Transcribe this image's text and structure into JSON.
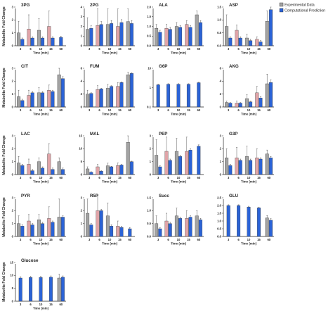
{
  "legend": {
    "experimental": "Experimental Data",
    "computational": "Computational Prediction"
  },
  "colors": {
    "experimental_3": "#a3a3a3",
    "experimental_6": "#e0a4a8",
    "experimental_10": "#a3a3a3",
    "experimental_15": "#e0a4a8",
    "experimental_60": "#a3a3a3",
    "computational": "#2b63d6",
    "axis": "#222222"
  },
  "y_axis_label": "Metabolite Fold Change",
  "x_axis_label": "Time (min)",
  "chart_data": [
    {
      "type": "bar",
      "title": "3PG",
      "categories": [
        "3",
        "6",
        "10",
        "15",
        "60"
      ],
      "yticks": [
        "0",
        "1",
        "2",
        "3"
      ],
      "ylim": [
        0,
        3
      ],
      "series": [
        {
          "name": "Experimental Data",
          "values": [
            1.0,
            1.3,
            1.2,
            1.5,
            null
          ],
          "errors": [
            0.9,
            1.1,
            0.9,
            1.2,
            null
          ]
        },
        {
          "name": "Computational Prediction",
          "values": [
            0.5,
            0.6,
            0.6,
            0.6,
            0.65
          ],
          "errors": [
            0.1,
            0.1,
            0.1,
            0.1,
            0.1
          ]
        }
      ]
    },
    {
      "type": "bar",
      "title": "2PG",
      "categories": [
        "3",
        "6",
        "10",
        "15",
        "60"
      ],
      "yticks": [
        "0",
        "1",
        "2",
        "3",
        "4"
      ],
      "ylim": [
        0,
        4
      ],
      "series": [
        {
          "name": "Experimental Data",
          "values": [
            1.7,
            2.1,
            2.2,
            2.0,
            2.5
          ],
          "errors": [
            1.2,
            1.7,
            1.6,
            1.8,
            1.3
          ]
        },
        {
          "name": "Computational Prediction",
          "values": [
            1.8,
            2.2,
            2.3,
            2.4,
            2.3
          ],
          "errors": [
            0.3,
            0.3,
            0.3,
            0.3,
            0.3
          ]
        }
      ]
    },
    {
      "type": "bar",
      "title": "ALA",
      "categories": [
        "3",
        "6",
        "10",
        "15",
        "60"
      ],
      "yticks": [
        "0.0",
        "0.5",
        "1.0",
        "1.5",
        "2.0"
      ],
      "ylim": [
        0,
        2
      ],
      "series": [
        {
          "name": "Experimental Data",
          "values": [
            0.9,
            0.9,
            1.0,
            1.1,
            1.6
          ],
          "errors": [
            0.2,
            0.2,
            0.2,
            0.2,
            0.2
          ]
        },
        {
          "name": "Computational Prediction",
          "values": [
            0.7,
            0.85,
            0.95,
            0.95,
            1.2
          ],
          "errors": [
            0.1,
            0.1,
            0.1,
            0.1,
            0.1
          ]
        }
      ]
    },
    {
      "type": "bar",
      "title": "ASP",
      "categories": [
        "3",
        "6",
        "10",
        "15",
        "60"
      ],
      "yticks": [
        "0.0",
        "0.5",
        "1.0",
        "1.5"
      ],
      "ylim": [
        0,
        1.5
      ],
      "series": [
        {
          "name": "Experimental Data",
          "values": [
            0.75,
            0.6,
            0.3,
            0.25,
            0.95
          ],
          "errors": [
            0.45,
            0.2,
            0.15,
            0.1,
            0.4
          ]
        },
        {
          "name": "Computational Prediction",
          "values": [
            0.3,
            0.3,
            0.2,
            0.15,
            1.4
          ],
          "errors": [
            0.05,
            0.05,
            0.05,
            0.05,
            0.1
          ]
        }
      ]
    },
    {
      "type": "bar",
      "title": "CIT",
      "categories": [
        "3",
        "6",
        "10",
        "15",
        "60"
      ],
      "yticks": [
        "0",
        "1",
        "2",
        "3"
      ],
      "ylim": [
        0,
        3
      ],
      "series": [
        {
          "name": "Experimental Data",
          "values": [
            0.8,
            0.9,
            1.1,
            1.3,
            2.5
          ],
          "errors": [
            0.5,
            0.4,
            0.4,
            0.4,
            0.5
          ]
        },
        {
          "name": "Computational Prediction",
          "values": [
            0.5,
            1.1,
            1.1,
            1.2,
            2.2
          ],
          "errors": [
            0.1,
            0.1,
            0.1,
            0.1,
            0.15
          ]
        }
      ]
    },
    {
      "type": "bar",
      "title": "FUM",
      "categories": [
        "3",
        "6",
        "10",
        "15",
        "60"
      ],
      "yticks": [
        "0",
        "2",
        "4",
        "6"
      ],
      "ylim": [
        0,
        6
      ],
      "series": [
        {
          "name": "Experimental Data",
          "values": [
            2.0,
            2.7,
            2.9,
            3.2,
            5.0
          ],
          "errors": [
            0.6,
            0.6,
            0.6,
            0.6,
            0.4
          ]
        },
        {
          "name": "Computational Prediction",
          "values": [
            2.1,
            2.8,
            3.2,
            3.8,
            5.2
          ],
          "errors": [
            0.1,
            0.1,
            0.1,
            0.1,
            0.1
          ]
        }
      ]
    },
    {
      "type": "bar",
      "title": "G6P",
      "categories": [
        "3",
        "6",
        "10",
        "15",
        "60"
      ],
      "yticks": [
        "0.1",
        "1",
        "10"
      ],
      "ylim": [
        0.1,
        10
      ],
      "scale": "log",
      "series": [
        {
          "name": "Experimental Data",
          "values": [
            null,
            null,
            null,
            null,
            null
          ],
          "errors": [
            null,
            null,
            null,
            null,
            null
          ]
        },
        {
          "name": "Computational Prediction",
          "values": [
            1.4,
            1.5,
            1.5,
            1.5,
            1.8
          ],
          "errors": [
            0.1,
            0.1,
            0.1,
            0.1,
            0.1
          ]
        }
      ]
    },
    {
      "type": "bar",
      "title": "AKG",
      "categories": [
        "3",
        "6",
        "10",
        "15",
        "60"
      ],
      "yticks": [
        "0",
        "2",
        "4",
        "6"
      ],
      "ylim": [
        0,
        6
      ],
      "series": [
        {
          "name": "Experimental Data",
          "values": [
            0.7,
            0.6,
            1.3,
            2.2,
            3.6
          ],
          "errors": [
            0.2,
            0.3,
            0.6,
            1.0,
            1.5
          ]
        },
        {
          "name": "Computational Prediction",
          "values": [
            0.6,
            0.6,
            0.8,
            1.4,
            3.8
          ],
          "errors": [
            0.1,
            0.1,
            0.1,
            0.2,
            0.4
          ]
        }
      ]
    },
    {
      "type": "bar",
      "title": "LAC",
      "categories": [
        "3",
        "6",
        "10",
        "15",
        "60"
      ],
      "yticks": [
        "0",
        "1",
        "2",
        "3"
      ],
      "ylim": [
        0,
        3
      ],
      "series": [
        {
          "name": "Experimental Data",
          "values": [
            0.9,
            0.8,
            1.0,
            1.6,
            1.0
          ],
          "errors": [
            0.5,
            0.4,
            0.3,
            0.8,
            0.3
          ]
        },
        {
          "name": "Computational Prediction",
          "values": [
            0.7,
            0.3,
            0.5,
            0.4,
            0.4
          ],
          "errors": [
            0.1,
            0.1,
            0.1,
            0.1,
            0.1
          ]
        }
      ]
    },
    {
      "type": "bar",
      "title": "MAL",
      "categories": [
        "3",
        "6",
        "10",
        "15",
        "60"
      ],
      "yticks": [
        "0",
        "5",
        "10",
        "15"
      ],
      "ylim": [
        0,
        15
      ],
      "series": [
        {
          "name": "Experimental Data",
          "values": [
            2.2,
            3.0,
            3.4,
            3.5,
            12.5
          ],
          "errors": [
            0.8,
            0.9,
            1.0,
            1.0,
            2.5
          ]
        },
        {
          "name": "Computational Prediction",
          "values": [
            0.9,
            1.3,
            3.0,
            3.7,
            5.0
          ],
          "errors": [
            0.2,
            0.2,
            0.2,
            0.2,
            0.2
          ]
        }
      ]
    },
    {
      "type": "bar",
      "title": "PEP",
      "categories": [
        "3",
        "6",
        "10",
        "15",
        "60"
      ],
      "yticks": [
        "0",
        "1",
        "2",
        "3"
      ],
      "ylim": [
        0,
        3
      ],
      "series": [
        {
          "name": "Experimental Data",
          "values": [
            1.5,
            1.8,
            1.8,
            1.8,
            null
          ],
          "errors": [
            1.2,
            1.1,
            1.0,
            1.1,
            null
          ]
        },
        {
          "name": "Computational Prediction",
          "values": [
            0.6,
            1.1,
            1.4,
            1.9,
            2.2
          ],
          "errors": [
            0.1,
            0.1,
            0.1,
            0.1,
            0.1
          ]
        }
      ]
    },
    {
      "type": "bar",
      "title": "G3P",
      "categories": [
        "3",
        "6",
        "10",
        "15",
        "60"
      ],
      "yticks": [
        "0",
        "1",
        "2",
        "3"
      ],
      "ylim": [
        0,
        3
      ],
      "series": [
        {
          "name": "Experimental Data",
          "values": [
            1.3,
            1.3,
            1.4,
            1.3,
            1.6
          ],
          "errors": [
            0.7,
            0.8,
            0.8,
            0.7,
            0.3
          ]
        },
        {
          "name": "Computational Prediction",
          "values": [
            0.7,
            1.1,
            1.1,
            1.2,
            1.3
          ],
          "errors": [
            0.1,
            0.1,
            0.1,
            0.1,
            0.1
          ]
        }
      ]
    },
    {
      "type": "bar",
      "title": "PYR",
      "categories": [
        "3",
        "6",
        "10",
        "15",
        "60"
      ],
      "yticks": [
        "0",
        "1",
        "2",
        "3"
      ],
      "ylim": [
        0,
        3
      ],
      "series": [
        {
          "name": "Experimental Data",
          "values": [
            1.0,
            1.2,
            1.3,
            1.4,
            1.5
          ],
          "errors": [
            0.6,
            0.5,
            0.4,
            0.9,
            1.4
          ]
        },
        {
          "name": "Computational Prediction",
          "values": [
            0.8,
            0.9,
            1.0,
            1.1,
            1.5
          ],
          "errors": [
            0.1,
            0.1,
            0.1,
            0.1,
            0.1
          ]
        }
      ]
    },
    {
      "type": "bar",
      "title": "R5P",
      "categories": [
        "3",
        "6",
        "10",
        "15",
        "60"
      ],
      "yticks": [
        "0",
        "1",
        "2",
        "3"
      ],
      "ylim": [
        0,
        3
      ],
      "series": [
        {
          "name": "Experimental Data",
          "values": [
            1.8,
            2.0,
            1.6,
            0.8,
            null
          ],
          "errors": [
            1.1,
            1.2,
            1.0,
            0.4,
            null
          ]
        },
        {
          "name": "Computational Prediction",
          "values": [
            0.9,
            2.0,
            0.8,
            0.7,
            0.6
          ],
          "errors": [
            0.1,
            0.1,
            0.1,
            0.1,
            0.1
          ]
        }
      ]
    },
    {
      "type": "bar",
      "title": "Succ",
      "categories": [
        "3",
        "6",
        "10",
        "15",
        "60"
      ],
      "yticks": [
        "0.0",
        "0.5",
        "1.0",
        "1.5"
      ],
      "ylim": [
        0,
        1.5
      ],
      "series": [
        {
          "name": "Experimental Data",
          "values": [
            0.5,
            0.6,
            0.8,
            0.7,
            0.8
          ],
          "errors": [
            0.3,
            0.3,
            0.3,
            0.3,
            0.2
          ]
        },
        {
          "name": "Computational Prediction",
          "values": [
            0.3,
            0.5,
            0.7,
            0.75,
            0.65
          ],
          "errors": [
            0.05,
            0.05,
            0.05,
            0.05,
            0.05
          ]
        }
      ]
    },
    {
      "type": "bar",
      "title": "GLU",
      "categories": [
        "3",
        "6",
        "10",
        "15",
        "60"
      ],
      "yticks": [
        "0.0",
        "0.5",
        "1.0",
        "1.5",
        "2.0",
        "2.5"
      ],
      "ylim": [
        0,
        2.5
      ],
      "series": [
        {
          "name": "Experimental Data",
          "values": [
            null,
            null,
            null,
            null,
            1.2
          ],
          "errors": [
            null,
            null,
            null,
            null,
            0.15
          ]
        },
        {
          "name": "Computational Prediction",
          "values": [
            2.0,
            2.0,
            1.9,
            1.85,
            1.05
          ],
          "errors": [
            0.05,
            0.05,
            0.05,
            0.05,
            0.1
          ]
        }
      ]
    },
    {
      "type": "bar",
      "title": "Glucose",
      "categories": [
        "3",
        "6",
        "10",
        "15",
        "60"
      ],
      "yticks": [
        "0",
        "5",
        "10",
        "15"
      ],
      "ylim": [
        0,
        15
      ],
      "series": [
        {
          "name": "Experimental Data",
          "values": [
            null,
            null,
            null,
            null,
            9.0
          ],
          "errors": [
            null,
            null,
            null,
            null,
            1.5
          ]
        },
        {
          "name": "Computational Prediction",
          "values": [
            9.0,
            9.2,
            9.2,
            9.3,
            9.3
          ],
          "errors": [
            0.5,
            0.5,
            0.5,
            0.5,
            0.5
          ]
        }
      ]
    }
  ]
}
